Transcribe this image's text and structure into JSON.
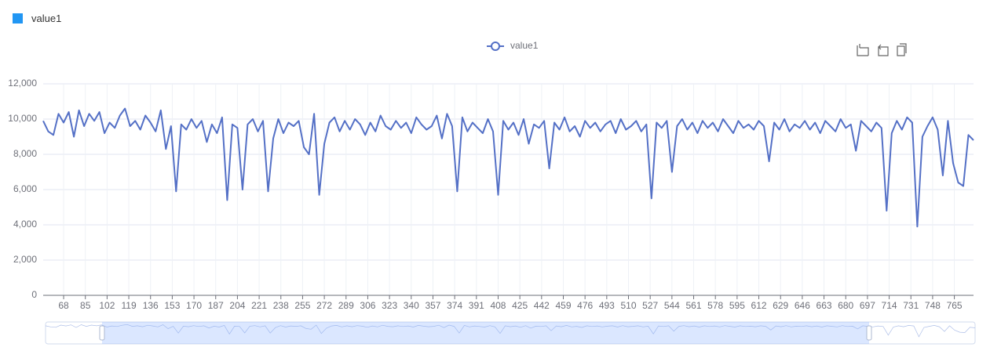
{
  "header": {
    "label": "value1",
    "color": "#2196f3"
  },
  "chart_data": {
    "type": "line",
    "x": [
      52,
      56,
      60,
      64,
      68,
      72,
      76,
      80,
      84,
      88,
      92,
      96,
      100,
      104,
      108,
      112,
      116,
      120,
      124,
      128,
      132,
      136,
      140,
      144,
      148,
      152,
      156,
      160,
      164,
      168,
      172,
      176,
      180,
      184,
      188,
      192,
      196,
      200,
      204,
      208,
      212,
      216,
      220,
      224,
      228,
      232,
      236,
      240,
      244,
      248,
      252,
      256,
      260,
      264,
      268,
      272,
      276,
      280,
      284,
      288,
      292,
      296,
      300,
      304,
      308,
      312,
      316,
      320,
      324,
      328,
      332,
      336,
      340,
      344,
      348,
      352,
      356,
      360,
      364,
      368,
      372,
      376,
      380,
      384,
      388,
      392,
      396,
      400,
      404,
      408,
      412,
      416,
      420,
      424,
      428,
      432,
      436,
      440,
      444,
      448,
      452,
      456,
      460,
      464,
      468,
      472,
      476,
      480,
      484,
      488,
      492,
      496,
      500,
      504,
      508,
      512,
      516,
      520,
      524,
      528,
      532,
      536,
      540,
      544,
      548,
      552,
      556,
      560,
      564,
      568,
      572,
      576,
      580,
      584,
      588,
      592,
      596,
      600,
      604,
      608,
      612,
      616,
      620,
      624,
      628,
      632,
      636,
      640,
      644,
      648,
      652,
      656,
      660,
      664,
      668,
      672,
      676,
      680,
      684,
      688,
      692,
      696,
      700,
      704,
      708,
      712,
      716,
      720,
      724,
      728,
      732,
      736,
      740,
      744,
      748,
      752,
      756,
      760,
      764,
      768,
      772,
      776,
      780
    ],
    "series": [
      {
        "name": "value1",
        "color": "#5470c6",
        "values": [
          9900,
          9300,
          9100,
          10300,
          9800,
          10400,
          9000,
          10500,
          9600,
          10300,
          9900,
          10400,
          9200,
          9800,
          9500,
          10200,
          10600,
          9600,
          9900,
          9400,
          10200,
          9800,
          9300,
          10500,
          8300,
          9600,
          5900,
          9700,
          9400,
          10000,
          9500,
          9900,
          8700,
          9700,
          9200,
          10100,
          5400,
          9700,
          9500,
          6000,
          9700,
          10000,
          9300,
          9900,
          5900,
          8900,
          10000,
          9200,
          9800,
          9600,
          9900,
          8400,
          8000,
          10300,
          5700,
          8600,
          9800,
          10100,
          9300,
          9900,
          9400,
          10000,
          9700,
          9100,
          9800,
          9300,
          10200,
          9600,
          9400,
          9900,
          9500,
          9800,
          9200,
          10100,
          9700,
          9400,
          9600,
          10200,
          8900,
          10300,
          9600,
          5900,
          10100,
          9300,
          9800,
          9500,
          9200,
          10000,
          9300,
          5700,
          9900,
          9400,
          9800,
          9100,
          10000,
          8600,
          9700,
          9500,
          9900,
          7200,
          9800,
          9400,
          10100,
          9300,
          9600,
          9000,
          9900,
          9500,
          9800,
          9300,
          9700,
          9900,
          9200,
          10000,
          9400,
          9600,
          9900,
          9300,
          9700,
          5500,
          9800,
          9500,
          9900,
          7000,
          9600,
          10000,
          9400,
          9800,
          9200,
          9900,
          9500,
          9800,
          9300,
          10000,
          9600,
          9200,
          9900,
          9500,
          9700,
          9400,
          9900,
          9600,
          7600,
          9800,
          9400,
          10000,
          9300,
          9700,
          9500,
          9900,
          9400,
          9800,
          9200,
          9900,
          9600,
          9300,
          10000,
          9500,
          9700,
          8200,
          9900,
          9600,
          9300,
          9800,
          9500,
          4800,
          9200,
          9900,
          9400,
          10100,
          9800,
          3900,
          9000,
          9600,
          10100,
          9400,
          6800,
          9900,
          7500,
          6400,
          6200,
          9100,
          8800
        ]
      }
    ],
    "xlim": [
      52,
      780
    ],
    "xticks": [
      68,
      85,
      102,
      119,
      136,
      153,
      170,
      187,
      204,
      221,
      238,
      255,
      272,
      289,
      306,
      323,
      340,
      357,
      374,
      391,
      408,
      425,
      442,
      459,
      476,
      493,
      510,
      527,
      544,
      561,
      578,
      595,
      612,
      629,
      646,
      663,
      680,
      697,
      714,
      731,
      748,
      765
    ],
    "ylim": [
      0,
      12000
    ],
    "yticks": [
      0,
      {
        "value": 2000,
        "label": "2,000"
      },
      {
        "value": 4000,
        "label": "4,000"
      },
      {
        "value": 6000,
        "label": "6,000"
      },
      {
        "value": 8000,
        "label": "8,000"
      },
      {
        "value": 10000,
        "label": "10,000"
      },
      {
        "value": 12000,
        "label": "12,000"
      }
    ],
    "grid": true
  }
}
